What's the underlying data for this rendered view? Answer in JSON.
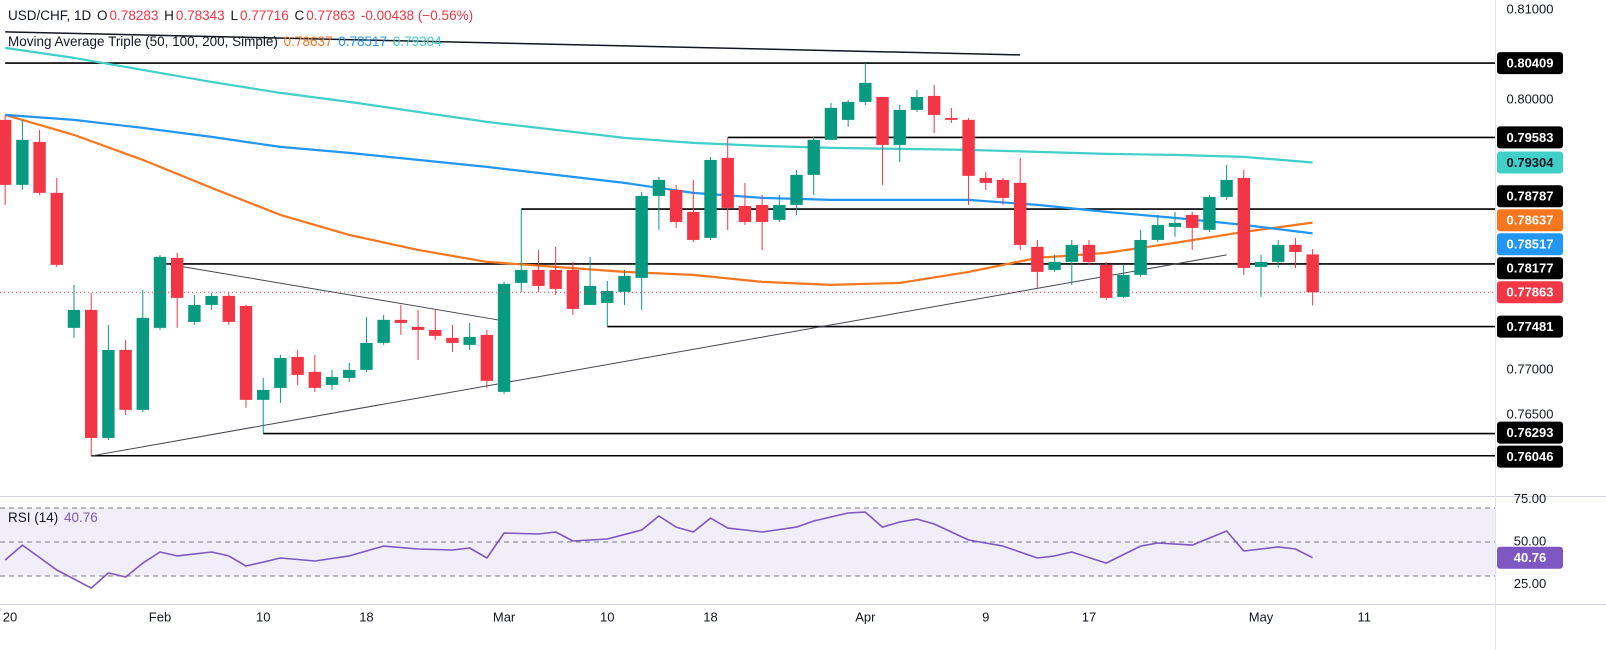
{
  "header": {
    "symbol": "USD/CHF, 1D",
    "o": "O",
    "h": "H",
    "l": "L",
    "c": "C",
    "change": "-0.00438 (−0.56%)",
    "ma_title": "Moving Average Triple (50, 100, 200, Simple)",
    "rsi_title": "RSI (14)"
  },
  "chart_data": [
    {
      "type": "candlestick",
      "up_color": "#089981",
      "down_color": "#f23645",
      "x": [
        0,
        1,
        2,
        3,
        4,
        5,
        6,
        7,
        8,
        9,
        10,
        11,
        12,
        13,
        14,
        15,
        16,
        17,
        18,
        19,
        20,
        21,
        22,
        23,
        24,
        25,
        26,
        27,
        28,
        29,
        30,
        31,
        32,
        33,
        34,
        35,
        36,
        37,
        38,
        39,
        40,
        41,
        42,
        43,
        44,
        45,
        46,
        47,
        48,
        49,
        50,
        51,
        52,
        53,
        54,
        55,
        56,
        57,
        58,
        59,
        60,
        61,
        62,
        63,
        64,
        65,
        66,
        67,
        68,
        69,
        70,
        71,
        72,
        73,
        74,
        75,
        76
      ],
      "open": [
        0.79778,
        0.79056,
        0.79533,
        0.78967,
        0.77467,
        0.77667,
        0.76244,
        0.77222,
        0.76556,
        0.77467,
        0.78244,
        0.77533,
        0.77722,
        0.77822,
        0.77711,
        0.76667,
        0.768,
        0.77144,
        0.76978,
        0.76833,
        0.76911,
        0.77,
        0.773,
        0.77556,
        0.77478,
        0.77444,
        0.77356,
        0.77278,
        0.77389,
        0.76756,
        0.77967,
        0.78111,
        0.78111,
        0.78111,
        0.77722,
        0.77744,
        0.77867,
        0.78022,
        0.78933,
        0.79,
        0.78756,
        0.78467,
        0.79356,
        0.78822,
        0.78833,
        0.78667,
        0.78833,
        0.79167,
        0.79556,
        0.79778,
        0.79978,
        0.80033,
        0.795,
        0.79889,
        0.80044,
        0.798,
        0.79778,
        0.79133,
        0.79111,
        0.79078,
        0.78367,
        0.78111,
        0.782,
        0.78389,
        0.78167,
        0.77811,
        0.78056,
        0.78444,
        0.78589,
        0.78722,
        0.78556,
        0.78922,
        0.79133,
        0.78144,
        0.782,
        0.78389,
        0.78283
      ],
      "high": [
        0.79833,
        0.79778,
        0.79667,
        0.79133,
        0.77944,
        0.77856,
        0.775,
        0.77333,
        0.77889,
        0.78278,
        0.783,
        0.77833,
        0.77856,
        0.77856,
        0.77722,
        0.76911,
        0.77167,
        0.77222,
        0.77167,
        0.77,
        0.77078,
        0.77589,
        0.77611,
        0.77722,
        0.77667,
        0.77667,
        0.775,
        0.77522,
        0.77444,
        0.77978,
        0.78787,
        0.78333,
        0.78367,
        0.782,
        0.78256,
        0.77989,
        0.78111,
        0.78978,
        0.79144,
        0.79056,
        0.79111,
        0.79367,
        0.79583,
        0.79078,
        0.78944,
        0.78944,
        0.79222,
        0.79589,
        0.79967,
        0.8,
        0.80409,
        0.80033,
        0.79944,
        0.80111,
        0.80167,
        0.79911,
        0.798,
        0.792,
        0.79133,
        0.79356,
        0.78444,
        0.78278,
        0.78444,
        0.78444,
        0.782,
        0.78167,
        0.78556,
        0.78722,
        0.78756,
        0.78756,
        0.78944,
        0.79278,
        0.79222,
        0.78278,
        0.78444,
        0.78467,
        0.78343
      ],
      "low": [
        0.78833,
        0.79,
        0.78944,
        0.78144,
        0.77356,
        0.76046,
        0.76222,
        0.765,
        0.76533,
        0.77444,
        0.77467,
        0.775,
        0.77667,
        0.775,
        0.76578,
        0.76293,
        0.76633,
        0.76833,
        0.76756,
        0.76778,
        0.76867,
        0.76978,
        0.77278,
        0.77389,
        0.77111,
        0.77333,
        0.772,
        0.77222,
        0.768,
        0.76733,
        0.77867,
        0.77867,
        0.77833,
        0.77611,
        0.77722,
        0.77481,
        0.77722,
        0.77667,
        0.78556,
        0.78578,
        0.78422,
        0.78444,
        0.78556,
        0.78611,
        0.78333,
        0.78644,
        0.78722,
        0.78944,
        0.79556,
        0.797,
        0.79944,
        0.79056,
        0.79311,
        0.79867,
        0.79633,
        0.79744,
        0.78833,
        0.79,
        0.78833,
        0.78333,
        0.77911,
        0.78089,
        0.77944,
        0.78167,
        0.77778,
        0.778,
        0.78033,
        0.78422,
        0.78478,
        0.78333,
        0.78533,
        0.78889,
        0.78056,
        0.77811,
        0.78133,
        0.78133,
        0.77716
      ],
      "close": [
        0.79056,
        0.79556,
        0.78967,
        0.78167,
        0.77667,
        0.76244,
        0.77222,
        0.76556,
        0.77578,
        0.78256,
        0.778,
        0.77722,
        0.77822,
        0.77533,
        0.76667,
        0.76778,
        0.77133,
        0.76944,
        0.768,
        0.76922,
        0.77,
        0.773,
        0.77556,
        0.77522,
        0.77444,
        0.77378,
        0.773,
        0.77367,
        0.76878,
        0.77956,
        0.78111,
        0.77933,
        0.779,
        0.77678,
        0.77933,
        0.77878,
        0.78044,
        0.78933,
        0.79111,
        0.78644,
        0.78444,
        0.79333,
        0.788,
        0.78644,
        0.78644,
        0.78833,
        0.79167,
        0.79556,
        0.79911,
        0.79978,
        0.80189,
        0.795,
        0.79889,
        0.80033,
        0.79833,
        0.79778,
        0.79156,
        0.79078,
        0.78911,
        0.78389,
        0.78089,
        0.782,
        0.78389,
        0.782,
        0.778,
        0.78056,
        0.78444,
        0.78611,
        0.78633,
        0.78578,
        0.78922,
        0.79111,
        0.78133,
        0.782,
        0.78389,
        0.78311,
        0.77863
      ],
      "series": [
        {
          "color": "#f7761e",
          "x": [
            0,
            4,
            8,
            12,
            16,
            20,
            24,
            28,
            32,
            36,
            40,
            44,
            48,
            52,
            56,
            60,
            64,
            68,
            72,
            76
          ],
          "values": [
            0.79833,
            0.79611,
            0.79333,
            0.79022,
            0.78722,
            0.785,
            0.78333,
            0.782,
            0.78144,
            0.78089,
            0.78056,
            0.77978,
            0.77944,
            0.77967,
            0.78089,
            0.78244,
            0.783,
            0.78411,
            0.78533,
            0.78637
          ]
        },
        {
          "color": "#2196f3",
          "x": [
            0,
            4,
            8,
            12,
            16,
            20,
            24,
            28,
            32,
            36,
            40,
            44,
            48,
            52,
            56,
            60,
            64,
            68,
            72,
            76
          ],
          "values": [
            0.79833,
            0.79778,
            0.79689,
            0.79589,
            0.79478,
            0.79411,
            0.79333,
            0.79256,
            0.79167,
            0.79078,
            0.78967,
            0.78911,
            0.78889,
            0.78889,
            0.78889,
            0.78833,
            0.78756,
            0.78689,
            0.78611,
            0.78517
          ]
        },
        {
          "color": "#40cfc9",
          "x": [
            0,
            4,
            8,
            12,
            16,
            20,
            24,
            28,
            32,
            36,
            40,
            44,
            48,
            52,
            56,
            60,
            64,
            68,
            72,
            76
          ],
          "values": [
            0.80578,
            0.80467,
            0.80333,
            0.802,
            0.80078,
            0.79978,
            0.79867,
            0.79756,
            0.79667,
            0.79578,
            0.79522,
            0.79489,
            0.79467,
            0.79456,
            0.79444,
            0.79422,
            0.794,
            0.79389,
            0.79367,
            0.79304
          ]
        }
      ],
      "levels": [
        {
          "value": 0.80409,
          "from": 0
        },
        {
          "value": 0.79583,
          "from": 42
        },
        {
          "value": 0.78787,
          "from": 30
        },
        {
          "value": 0.78177,
          "from": 9
        },
        {
          "value": 0.77481,
          "from": 35
        },
        {
          "value": 0.76293,
          "from": 15
        },
        {
          "value": 0.76046,
          "from": 5
        }
      ],
      "trendlines": [
        {
          "x": [
            0,
            59
          ],
          "y": [
            0.80756,
            0.805
          ],
          "color": "#131722"
        },
        {
          "x": [
            9,
            29
          ],
          "y": [
            0.78189,
            0.77544
          ],
          "color": "#434651"
        },
        {
          "x": [
            5,
            71
          ],
          "y": [
            0.76044,
            0.78278
          ],
          "color": "#434651"
        }
      ],
      "xlim": [
        -0.3,
        86.6
      ],
      "ylim": [
        0.7561,
        0.8111
      ],
      "xticks": [
        {
          "value": 0,
          "label": "20"
        },
        {
          "value": 9,
          "label": "Feb"
        },
        {
          "value": 15,
          "label": "10"
        },
        {
          "value": 21,
          "label": "18"
        },
        {
          "value": 29,
          "label": "Mar"
        },
        {
          "value": 35,
          "label": "10"
        },
        {
          "value": 41,
          "label": "18"
        },
        {
          "value": 50,
          "label": "Apr"
        },
        {
          "value": 57,
          "label": "9"
        },
        {
          "value": 63,
          "label": "17"
        },
        {
          "value": 73,
          "label": "May"
        },
        {
          "value": 79,
          "label": "11"
        }
      ],
      "yticks": [
        {
          "value": 0.81,
          "label": "0.81000"
        },
        {
          "value": 0.8,
          "label": "0.80000"
        },
        {
          "value": 0.77,
          "label": "0.77000"
        },
        {
          "value": 0.765,
          "label": "0.76500"
        }
      ]
    },
    {
      "type": "line",
      "color": "#7e57c2",
      "x": [
        0,
        1,
        3,
        5,
        6,
        7,
        8,
        9,
        10,
        12,
        13,
        14,
        15,
        16,
        18,
        20,
        22,
        24,
        26,
        27,
        28,
        29,
        31,
        32,
        33,
        35,
        37,
        38,
        39,
        40,
        41,
        42,
        43,
        44,
        46,
        47,
        49,
        50,
        51,
        52,
        53,
        54,
        56,
        58,
        60,
        61,
        62,
        64,
        66,
        67,
        69,
        71,
        72,
        74,
        75,
        76
      ],
      "values": [
        39.4,
        48.2,
        33.5,
        22.9,
        31.8,
        29.4,
        37.6,
        44.1,
        41.8,
        44.1,
        41.8,
        35.9,
        38.2,
        40.6,
        38.8,
        41.8,
        47.6,
        45.9,
        45.3,
        46.5,
        40.6,
        55.3,
        54.7,
        55.9,
        50.6,
        51.8,
        57.1,
        65.3,
        58.8,
        55.9,
        64.1,
        58.2,
        57.1,
        55.9,
        58.8,
        62.4,
        67.1,
        67.6,
        58.8,
        61.8,
        63.5,
        60.6,
        51.2,
        47.6,
        40.6,
        41.8,
        44.1,
        37.6,
        47.6,
        49.4,
        48.2,
        56.5,
        44.7,
        47.1,
        45.9,
        40.76
      ],
      "levels": [
        70,
        50,
        30
      ],
      "ylim": [
        14.1,
        76.5
      ],
      "yticks": [
        {
          "value": 75,
          "label": "75.00"
        },
        {
          "value": 50,
          "label": "50.00"
        },
        {
          "value": 25,
          "label": "25.00"
        }
      ]
    }
  ]
}
